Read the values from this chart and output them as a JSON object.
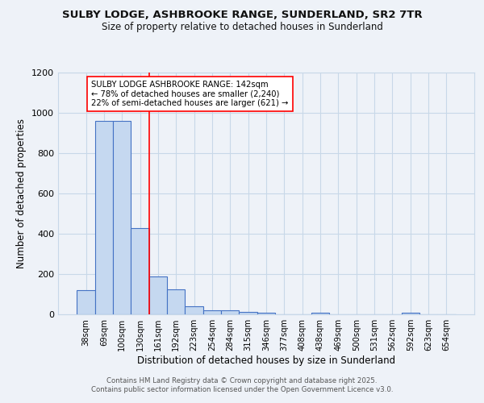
{
  "title_line1": "SULBY LODGE, ASHBROOKE RANGE, SUNDERLAND, SR2 7TR",
  "title_line2": "Size of property relative to detached houses in Sunderland",
  "xlabel": "Distribution of detached houses by size in Sunderland",
  "ylabel": "Number of detached properties",
  "categories": [
    "38sqm",
    "69sqm",
    "100sqm",
    "130sqm",
    "161sqm",
    "192sqm",
    "223sqm",
    "254sqm",
    "284sqm",
    "315sqm",
    "346sqm",
    "377sqm",
    "408sqm",
    "438sqm",
    "469sqm",
    "500sqm",
    "531sqm",
    "562sqm",
    "592sqm",
    "623sqm",
    "654sqm"
  ],
  "values": [
    120,
    960,
    960,
    430,
    190,
    125,
    42,
    20,
    20,
    12,
    8,
    0,
    0,
    8,
    0,
    0,
    0,
    0,
    8,
    0,
    0
  ],
  "bar_color": "#c5d8f0",
  "bar_edge_color": "#4472c4",
  "grid_color": "#c8d8e8",
  "bg_color": "#eef2f8",
  "annotation_text_line1": "SULBY LODGE ASHBROOKE RANGE: 142sqm",
  "annotation_text_line2": "← 78% of detached houses are smaller (2,240)",
  "annotation_text_line3": "22% of semi-detached houses are larger (621) →",
  "footer_line1": "Contains HM Land Registry data © Crown copyright and database right 2025.",
  "footer_line2": "Contains public sector information licensed under the Open Government Licence v3.0.",
  "ylim": [
    0,
    1200
  ],
  "yticks": [
    0,
    200,
    400,
    600,
    800,
    1000,
    1200
  ],
  "red_line_index": 3.5
}
